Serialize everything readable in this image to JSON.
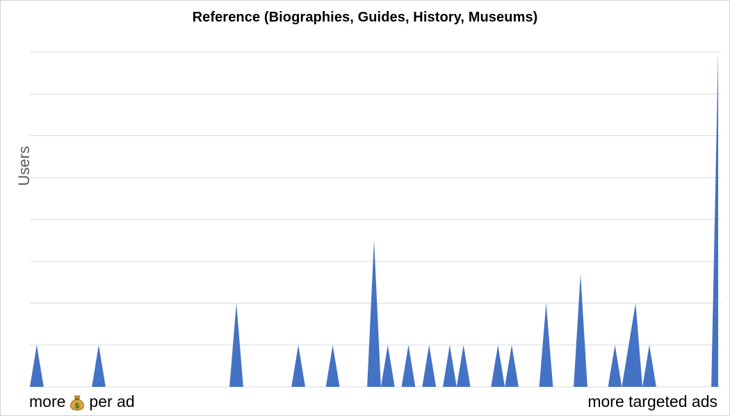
{
  "chart_data": {
    "type": "area",
    "title": "Reference (Biographies, Guides, History, Museums)",
    "ylabel": "Users",
    "xlabel_left_before": "more",
    "xlabel_left_icon": "money-bag-icon",
    "xlabel_left_after": "per ad",
    "xlabel_right": "more targeted ads",
    "grid": true,
    "legend": "none",
    "ylim": [
      0,
      8
    ],
    "color": "#4472c4",
    "x": [
      1,
      2,
      3,
      4,
      5,
      6,
      7,
      8,
      9,
      10,
      11,
      12,
      13,
      14,
      15,
      16,
      17,
      18,
      19,
      20,
      21,
      22,
      23,
      24,
      25,
      26,
      27,
      28,
      29,
      30,
      31,
      32,
      33,
      34,
      35,
      36,
      37,
      38,
      39,
      40,
      41,
      42,
      43,
      44,
      45,
      46,
      47,
      48,
      49,
      50,
      51,
      52,
      53,
      54,
      55,
      56,
      57,
      58,
      59,
      60,
      61,
      62,
      63,
      64,
      65,
      66,
      67,
      68,
      69,
      70,
      71,
      72,
      73,
      74,
      75,
      76,
      77,
      78,
      79,
      80,
      81,
      82,
      83,
      84,
      85,
      86,
      87,
      88,
      89,
      90,
      91,
      92,
      93,
      94,
      95,
      96,
      97,
      98,
      99,
      100,
      101
    ],
    "values": [
      0,
      1,
      0,
      0,
      0,
      0,
      0,
      0,
      0,
      0,
      1,
      0,
      0,
      0,
      0,
      0,
      0,
      0,
      0,
      0,
      0,
      0,
      0,
      0,
      0,
      0,
      0,
      0,
      0,
      0,
      2,
      0,
      0,
      0,
      0,
      0,
      0,
      0,
      0,
      1,
      0,
      0,
      0,
      0,
      1,
      0,
      0,
      0,
      0,
      0,
      3.5,
      0,
      1,
      0,
      0,
      1,
      0,
      0,
      1,
      0,
      0,
      1,
      0,
      1,
      0,
      0,
      0,
      0,
      1,
      0,
      1,
      0,
      0,
      0,
      0,
      2,
      0,
      0,
      0,
      0,
      2.7,
      0,
      0,
      0,
      0,
      1,
      0,
      1,
      2,
      0,
      1,
      0,
      0,
      0,
      0,
      0,
      0,
      0,
      0,
      0,
      8
    ]
  }
}
